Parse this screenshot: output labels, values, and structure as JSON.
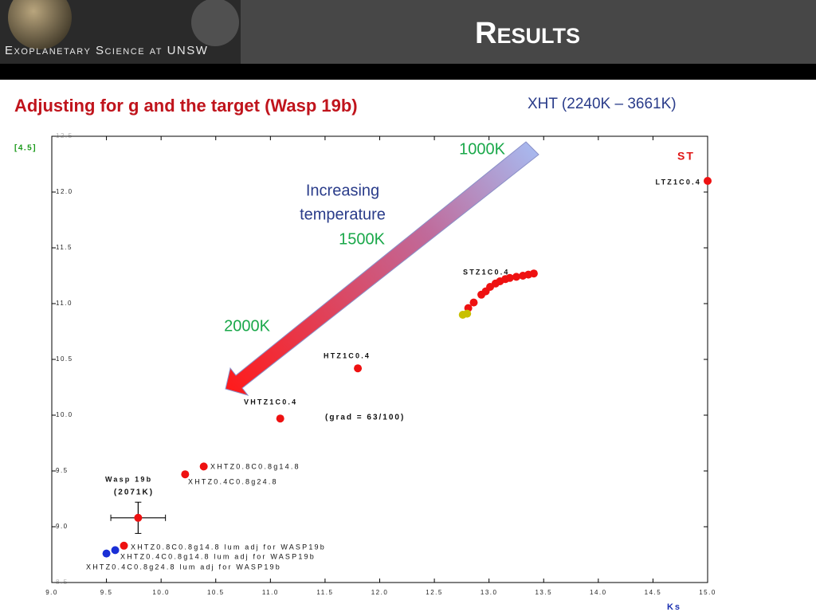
{
  "header": {
    "logo": "Exoplanetary Science at UNSW",
    "title": "Results"
  },
  "subtitle": "Adjusting for g and the target (Wasp 19b)",
  "range_note": "XHT (2240K – 3661K)",
  "chart_data": {
    "type": "scatter",
    "xlabel": "Ks",
    "ylabel": "[4.5]",
    "xlim": [
      9.0,
      15.0
    ],
    "ylim": [
      8.5,
      12.5
    ],
    "xticks": [
      {
        "value": 9.0,
        "label": "9.0"
      },
      9.5,
      {
        "value": 10.0,
        "label": "10.0"
      },
      10.5,
      {
        "value": 11.0,
        "label": "11.0"
      },
      11.5,
      {
        "value": 12.0,
        "label": "12.0"
      },
      12.5,
      {
        "value": 13.0,
        "label": "13.0"
      },
      13.5,
      {
        "value": 14.0,
        "label": "14.0"
      },
      14.5,
      {
        "value": 15.0,
        "label": "15.0"
      }
    ],
    "yticks": [
      8.5,
      {
        "value": 9.0,
        "label": "9.0"
      },
      9.5,
      {
        "value": 10.0,
        "label": "10.0"
      },
      10.5,
      {
        "value": 11.0,
        "label": "11.0"
      },
      11.5,
      {
        "value": 12.0,
        "label": "12.0"
      },
      12.5
    ],
    "series": [
      {
        "name": "LTZ1C0.4",
        "color": "#ee1111",
        "x": [
          15.0
        ],
        "values": [
          12.1
        ]
      },
      {
        "name": "STZ1C0.4",
        "color": "#ee1111",
        "x": [
          12.81,
          12.86,
          12.93,
          12.97,
          13.01,
          13.06,
          13.1,
          13.15,
          13.19,
          13.25,
          13.31,
          13.36,
          13.41
        ],
        "values": [
          10.96,
          11.01,
          11.08,
          11.11,
          11.15,
          11.18,
          11.2,
          11.22,
          11.23,
          11.24,
          11.25,
          11.26,
          11.27
        ]
      },
      {
        "color": "#c8c000",
        "x": [
          12.76,
          12.8
        ],
        "values": [
          10.9,
          10.91
        ]
      },
      {
        "name": "HTZ1C0.4",
        "color": "#ee1111",
        "x": [
          11.8
        ],
        "values": [
          10.42
        ]
      },
      {
        "name": "VHTZ1C0.4",
        "color": "#ee1111",
        "x": [
          11.09
        ],
        "values": [
          9.97
        ]
      },
      {
        "name": "XHTZ0.8C0.8g14.8",
        "color": "#ee1111",
        "x": [
          10.39
        ],
        "values": [
          9.54
        ]
      },
      {
        "name": "XHTZ0.4C0.8g24.8",
        "color": "#ee1111",
        "x": [
          10.22
        ],
        "values": [
          9.47
        ]
      },
      {
        "name": "Wasp 19b",
        "color": "#ee1111",
        "x": [
          9.79
        ],
        "values": [
          9.08
        ],
        "xerr": [
          0.25
        ],
        "yerr": [
          0.14
        ]
      },
      {
        "name": "XHTZ0.8C0.8g14.8 lum adj for WASP19b",
        "color": "#ee1111",
        "x": [
          9.66
        ],
        "values": [
          8.83
        ]
      },
      {
        "name": "XHTZ0.4C0.8g14.8 lum adj for WASP19b",
        "color": "#1a2fd6",
        "x": [
          9.58
        ],
        "values": [
          8.79
        ]
      },
      {
        "name": "XHTZ0.4C0.8g24.8 lum adj for WASP19b",
        "color": "#1a2fd6",
        "x": [
          9.5
        ],
        "values": [
          8.76
        ]
      }
    ],
    "annotations": [
      "ST",
      "(2071K)",
      "(grad = 63/100)",
      "Increasing",
      "temperature",
      "1000K",
      "1500K",
      "2000K"
    ]
  }
}
